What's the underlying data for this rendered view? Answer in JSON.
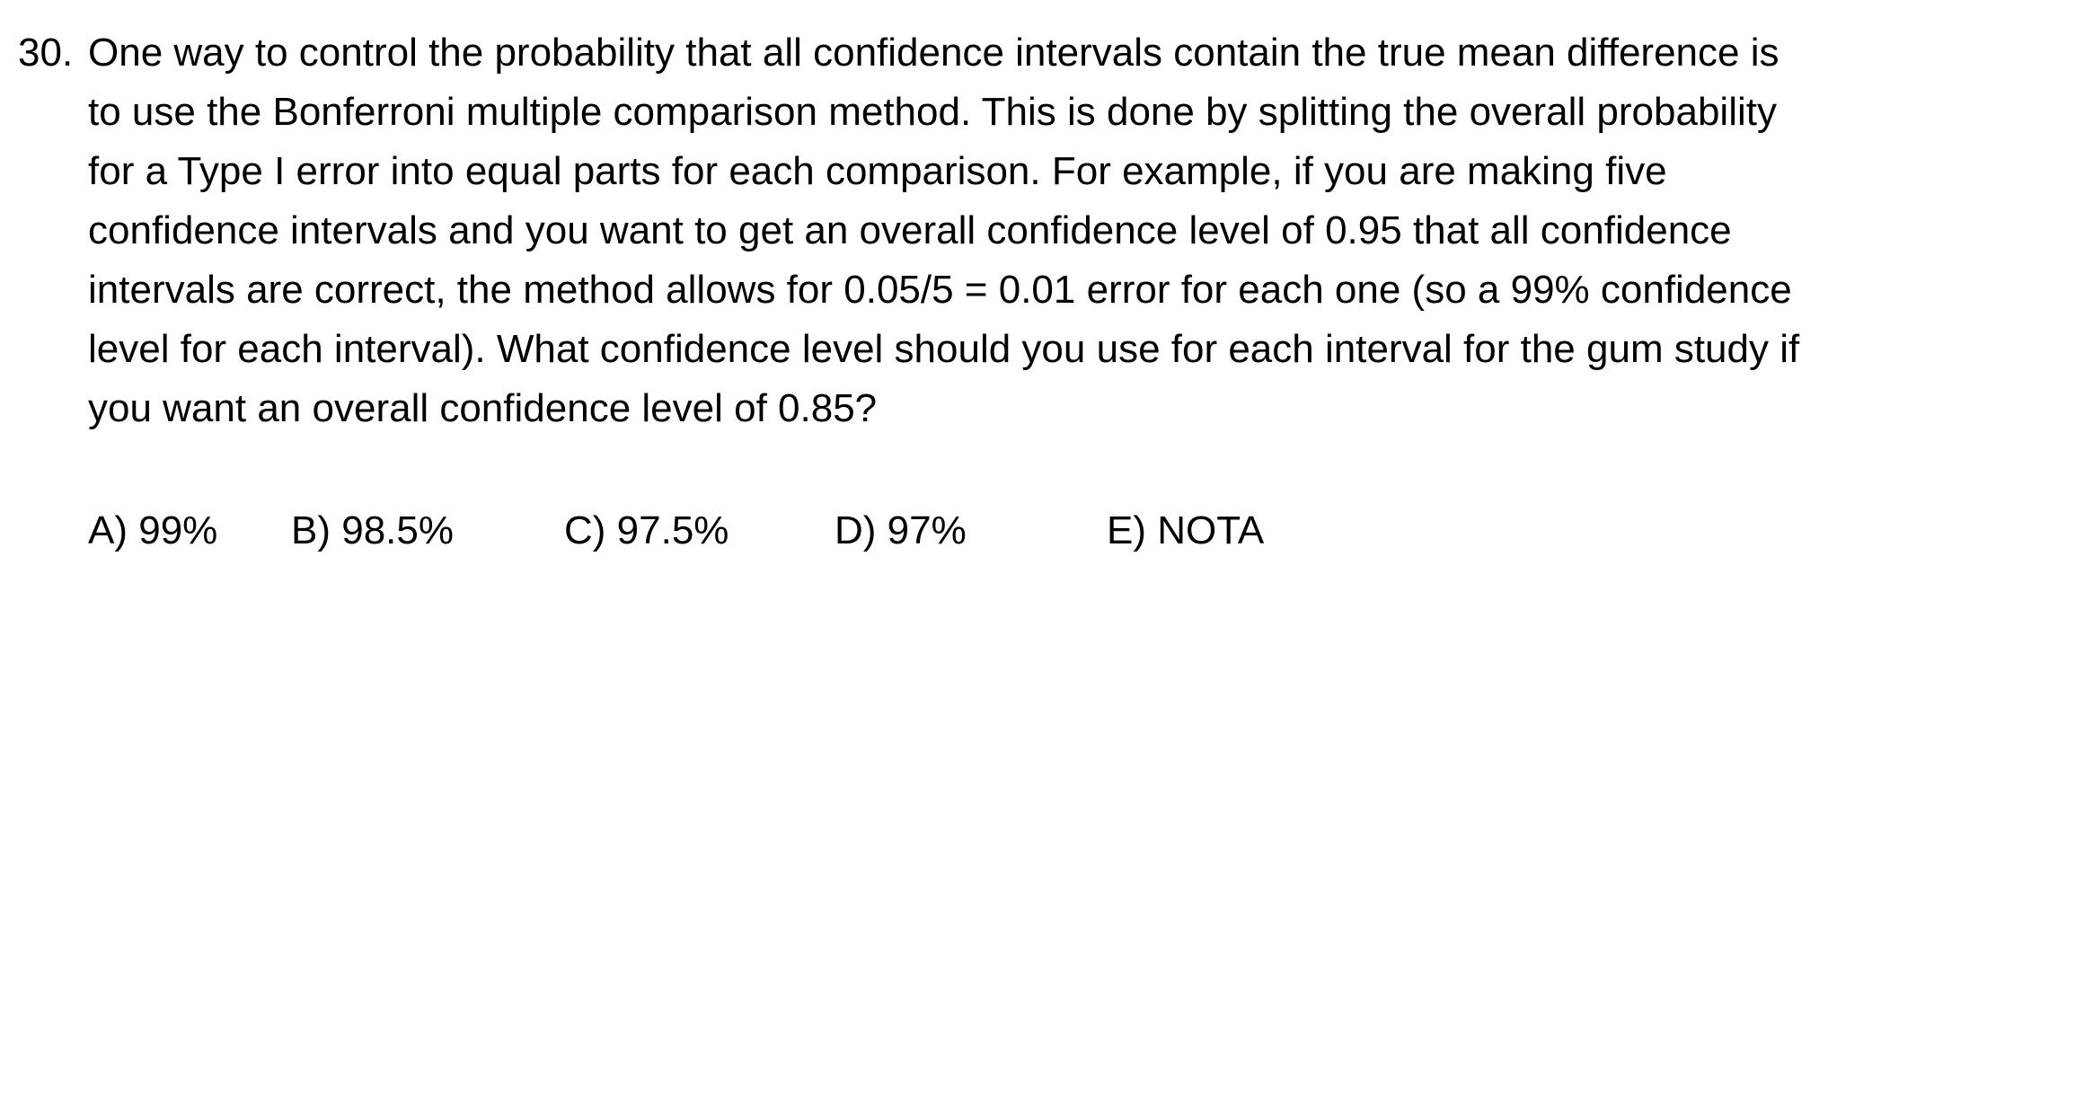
{
  "question": {
    "number": "30.",
    "lines": [
      "One way to control the probability that all confidence intervals contain the true mean difference is",
      "to use the Bonferroni multiple comparison method. This is done by splitting the overall probability",
      "for a Type I error into equal parts for each comparison. For example, if you are making five",
      "confidence intervals and you want to get an overall confidence level of 0.95 that all confidence",
      "intervals are correct, the method allows for 0.05/5 = 0.01 error for each one (so a 99% confidence",
      "level for each interval). What confidence level should you use for each interval for the gum study if",
      "you want an overall confidence level of 0.85?"
    ]
  },
  "choices": [
    "A) 99%",
    "B) 98.5%",
    "C) 97.5%",
    "D) 97%",
    "E) NOTA"
  ]
}
